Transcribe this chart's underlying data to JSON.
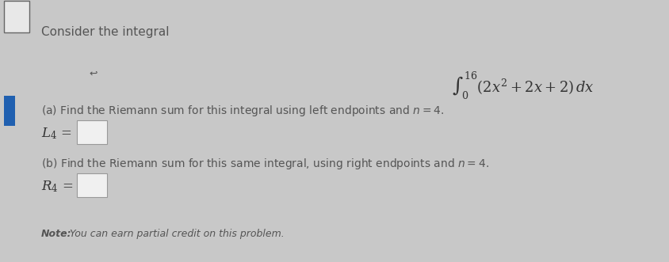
{
  "background_color": "#c8c8c8",
  "content_bg": "#e0e0e0",
  "title_text": "Consider the integral",
  "part_a_text": "(a) Find the Riemann sum for this integral using left endpoints and ",
  "part_a_n": "n",
  "part_a_end": " = 4.",
  "part_b_text": "(b) Find the Riemann sum for this same integral, using right endpoints and ",
  "part_b_n": "n",
  "part_b_end": " = 4.",
  "note_bold": "Note:",
  "note_rest": " You can earn partial credit on this problem.",
  "sidebar_color": "#2060b0",
  "text_color": "#555555",
  "label_color": "#333333",
  "note_color": "#555555",
  "box_facecolor": "#f0f0f0",
  "box_edgecolor": "#999999",
  "top_box_facecolor": "#e8e8e8",
  "top_box_edgecolor": "#666666"
}
